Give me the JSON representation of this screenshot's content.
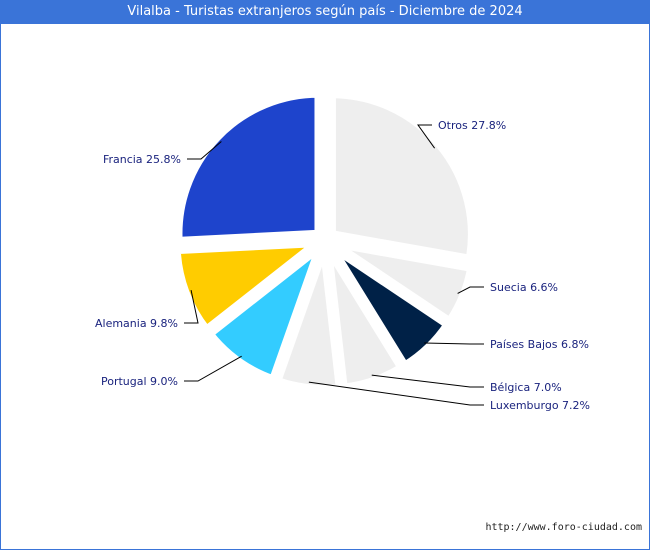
{
  "header": {
    "title": "Vilalba - Turistas extranjeros según país - Diciembre de 2024"
  },
  "footer": {
    "source_url": "http://www.foro-ciudad.com"
  },
  "colors": {
    "title_bar": "#3a74d8",
    "label_text": "#1a237e"
  },
  "chart_data": {
    "type": "pie",
    "title": "Vilalba - Turistas extranjeros según país - Diciembre de 2024",
    "slices": [
      {
        "label": "Otros",
        "value": 27.8,
        "display": "Otros 27.8%",
        "color": "#eeeeee"
      },
      {
        "label": "Suecia",
        "value": 6.6,
        "display": "Suecia 6.6%",
        "color": "#eeeeee"
      },
      {
        "label": "Países Bajos",
        "value": 6.8,
        "display": "Países Bajos 6.8%",
        "color": "#002147"
      },
      {
        "label": "Bélgica",
        "value": 7.0,
        "display": "Bélgica 7.0%",
        "color": "#eeeeee"
      },
      {
        "label": "Luxemburgo",
        "value": 7.2,
        "display": "Luxemburgo 7.2%",
        "color": "#eeeeee"
      },
      {
        "label": "Portugal",
        "value": 9.0,
        "display": "Portugal 9.0%",
        "color": "#33ccff"
      },
      {
        "label": "Alemania",
        "value": 9.8,
        "display": "Alemania 9.8%",
        "color": "#ffcc00"
      },
      {
        "label": "Francia",
        "value": 25.8,
        "display": "Francia 25.8%",
        "color": "#1e44cc"
      }
    ]
  }
}
